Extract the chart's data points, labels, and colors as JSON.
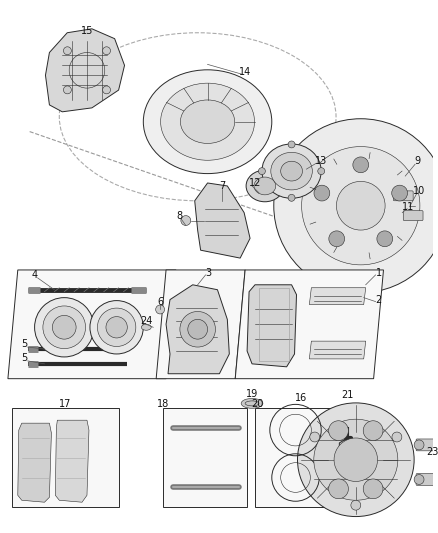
{
  "bg_color": "#ffffff",
  "line_color": "#2a2a2a",
  "light_gray": "#cccccc",
  "mid_gray": "#999999",
  "dark_gray": "#555555",
  "panel_fill": "#f8f8f8",
  "part_fill": "#e0e0e0",
  "figsize": [
    4.38,
    5.33
  ],
  "dpi": 100
}
